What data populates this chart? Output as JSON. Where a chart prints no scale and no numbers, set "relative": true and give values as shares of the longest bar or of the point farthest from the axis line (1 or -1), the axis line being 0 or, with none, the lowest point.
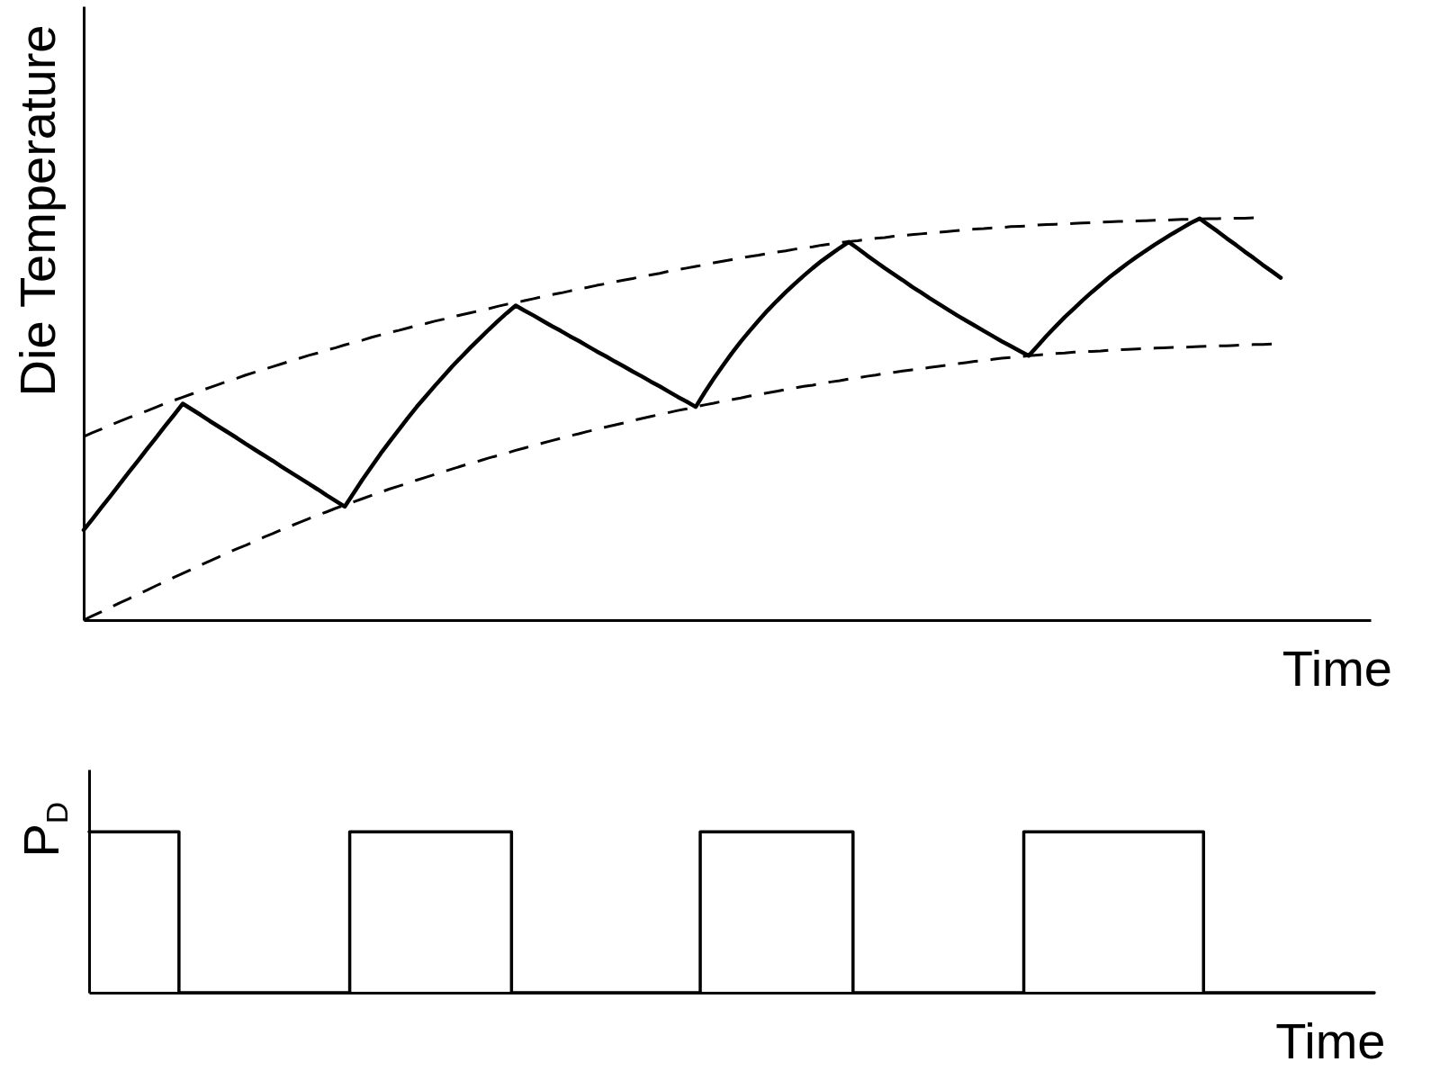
{
  "chart_data": [
    {
      "type": "line",
      "xlabel": "Time",
      "ylabel": "Die Temperature",
      "relative": true,
      "categories": [
        null,
        null,
        null,
        null,
        null,
        null,
        null,
        null,
        null,
        null,
        null,
        null,
        null,
        null,
        null,
        null,
        null,
        null,
        null,
        null,
        null,
        null,
        null,
        null,
        null,
        null,
        null,
        null,
        null,
        null,
        null,
        null,
        null,
        null,
        null,
        null,
        null,
        null,
        null,
        null,
        null,
        null,
        null,
        null,
        null,
        null,
        null,
        null,
        null,
        null,
        null,
        null,
        null,
        null,
        null,
        null,
        null,
        null,
        null,
        null,
        null,
        null,
        null,
        null,
        null,
        null,
        null,
        null,
        null,
        null,
        null,
        null,
        null,
        null,
        null,
        null,
        null,
        null,
        null,
        null,
        null,
        null,
        null,
        null,
        null,
        null,
        null,
        null,
        null,
        null,
        null,
        null,
        null,
        null,
        null,
        null,
        null,
        null,
        null,
        null,
        null,
        null,
        null,
        null,
        null,
        null,
        null,
        null,
        null,
        null,
        null,
        null,
        null,
        null,
        null,
        null,
        null,
        null,
        null,
        null,
        null,
        null,
        null,
        null,
        null,
        null,
        null,
        null,
        null,
        null,
        null,
        null,
        null,
        null,
        null,
        null,
        null,
        null,
        null,
        null,
        null,
        null,
        null,
        null
      ],
      "series": [
        {
          "color": "#000000",
          "line_style": "solid",
          "values": [
            0.224,
            0.252,
            0.281,
            0.309,
            0.338,
            0.367,
            0.395,
            0.424,
            0.452,
            0.481,
            0.509,
            0.538,
            0.524,
            0.51,
            0.495,
            0.481,
            0.467,
            0.453,
            0.438,
            0.424,
            0.41,
            0.396,
            0.381,
            0.367,
            0.353,
            0.339,
            0.325,
            0.31,
            0.296,
            0.282,
            0.316,
            0.35,
            0.382,
            0.414,
            0.444,
            0.473,
            0.502,
            0.53,
            0.556,
            0.582,
            0.607,
            0.632,
            0.655,
            0.678,
            0.7,
            0.722,
            0.743,
            0.763,
            0.782,
            0.769,
            0.757,
            0.744,
            0.731,
            0.719,
            0.706,
            0.694,
            0.681,
            0.668,
            0.656,
            0.643,
            0.631,
            0.618,
            0.606,
            0.593,
            0.581,
            0.568,
            0.555,
            0.543,
            0.53,
            0.566,
            0.6,
            0.632,
            0.663,
            0.692,
            0.719,
            0.745,
            0.77,
            0.793,
            0.815,
            0.836,
            0.856,
            0.875,
            0.893,
            0.909,
            0.925,
            0.94,
            0.924,
            0.907,
            0.891,
            0.875,
            0.86,
            0.845,
            0.829,
            0.815,
            0.8,
            0.786,
            0.772,
            0.758,
            0.745,
            0.732,
            0.719,
            0.706,
            0.693,
            0.681,
            0.669,
            0.657,
            0.682,
            0.707,
            0.73,
            0.753,
            0.774,
            0.795,
            0.815,
            0.834,
            0.853,
            0.87,
            0.887,
            0.903,
            0.918,
            0.933,
            0.947,
            0.961,
            0.974,
            0.987,
            0.998,
            0.982,
            0.966,
            0.949,
            0.933,
            0.916,
            0.9,
            0.883,
            0.867,
            0.851,
            null,
            null,
            null,
            null,
            null,
            null,
            null,
            null,
            null,
            null
          ]
        },
        {
          "color": "#000000",
          "line_style": "dashed",
          "values": [
            0.456,
            0.466,
            0.475,
            0.485,
            0.494,
            0.503,
            0.512,
            0.52,
            0.529,
            0.538,
            0.546,
            0.554,
            0.562,
            0.57,
            0.578,
            0.586,
            0.594,
            0.601,
            0.609,
            0.616,
            0.623,
            0.63,
            0.637,
            0.644,
            0.651,
            0.658,
            0.664,
            0.671,
            0.677,
            0.684,
            0.69,
            0.696,
            0.703,
            0.709,
            0.715,
            0.72,
            0.726,
            0.732,
            0.737,
            0.743,
            0.748,
            0.754,
            0.759,
            0.764,
            0.769,
            0.774,
            0.78,
            0.785,
            0.789,
            0.794,
            0.799,
            0.804,
            0.809,
            0.813,
            0.818,
            0.823,
            0.827,
            0.832,
            0.836,
            0.841,
            0.845,
            0.849,
            0.854,
            0.858,
            0.862,
            0.867,
            0.871,
            0.875,
            0.879,
            0.883,
            0.888,
            0.892,
            0.896,
            0.9,
            0.904,
            0.907,
            0.911,
            0.915,
            0.918,
            0.922,
            0.925,
            0.928,
            0.932,
            0.935,
            0.938,
            0.941,
            0.943,
            0.946,
            0.949,
            0.951,
            0.954,
            0.956,
            0.958,
            0.96,
            0.962,
            0.964,
            0.966,
            0.968,
            0.97,
            0.972,
            0.973,
            0.975,
            0.976,
            0.978,
            0.979,
            0.98,
            0.982,
            0.983,
            0.984,
            0.985,
            0.986,
            0.987,
            0.988,
            0.989,
            0.99,
            0.991,
            0.991,
            0.992,
            0.993,
            0.994,
            0.994,
            0.995,
            0.996,
            0.996,
            0.997,
            0.998,
            0.998,
            0.999,
            0.999,
            0.999,
            1,
            null,
            null,
            null,
            null,
            null,
            null,
            null,
            null,
            null,
            null,
            null,
            null,
            null
          ]
        },
        {
          "color": "#000000",
          "line_style": "dashed",
          "values": [
            0,
            0.011,
            0.021,
            0.032,
            0.043,
            0.053,
            0.064,
            0.074,
            0.085,
            0.095,
            0.106,
            0.116,
            0.126,
            0.137,
            0.147,
            0.157,
            0.167,
            0.177,
            0.186,
            0.196,
            0.206,
            0.215,
            0.225,
            0.234,
            0.243,
            0.252,
            0.261,
            0.269,
            0.278,
            0.286,
            0.294,
            0.302,
            0.31,
            0.318,
            0.326,
            0.333,
            0.34,
            0.348,
            0.355,
            0.362,
            0.369,
            0.376,
            0.383,
            0.39,
            0.396,
            0.403,
            0.409,
            0.415,
            0.422,
            0.428,
            0.434,
            0.44,
            0.446,
            0.452,
            0.458,
            0.463,
            0.469,
            0.474,
            0.48,
            0.485,
            0.49,
            0.496,
            0.501,
            0.506,
            0.511,
            0.516,
            0.521,
            0.525,
            0.53,
            0.535,
            0.539,
            0.544,
            0.548,
            0.552,
            0.557,
            0.561,
            0.565,
            0.569,
            0.573,
            0.577,
            0.581,
            0.584,
            0.588,
            0.592,
            0.595,
            0.599,
            0.602,
            0.606,
            0.609,
            0.613,
            0.616,
            0.619,
            0.622,
            0.625,
            0.628,
            0.631,
            0.634,
            0.637,
            0.64,
            0.643,
            0.645,
            0.648,
            0.651,
            0.653,
            0.655,
            0.657,
            0.659,
            0.661,
            0.663,
            0.664,
            0.666,
            0.667,
            0.668,
            0.669,
            0.671,
            0.672,
            0.673,
            0.674,
            0.675,
            0.676,
            0.677,
            0.678,
            0.678,
            0.679,
            0.68,
            0.681,
            0.682,
            0.682,
            0.683,
            0.684,
            0.685,
            0.685,
            0.686,
            null,
            null,
            null,
            null,
            null,
            null,
            null,
            null,
            null,
            null,
            null
          ]
        }
      ]
    },
    {
      "type": "step",
      "xlabel": "Time",
      "ylabel": "P$_{D}$",
      "relative": true,
      "color": "#000000",
      "categories": [
        null,
        null,
        null,
        null,
        null,
        null,
        null,
        null,
        null,
        null,
        null,
        null,
        null,
        null,
        null,
        null,
        null,
        null,
        null,
        null,
        null,
        null,
        null,
        null,
        null,
        null,
        null,
        null,
        null,
        null,
        null,
        null,
        null,
        null,
        null,
        null,
        null,
        null,
        null,
        null,
        null,
        null,
        null,
        null,
        null,
        null,
        null,
        null,
        null,
        null,
        null,
        null,
        null,
        null,
        null,
        null,
        null,
        null,
        null,
        null,
        null,
        null,
        null,
        null,
        null,
        null,
        null,
        null,
        null,
        null,
        null,
        null,
        null,
        null,
        null,
        null,
        null,
        null,
        null,
        null,
        null,
        null,
        null,
        null,
        null,
        null,
        null,
        null,
        null,
        null,
        null,
        null,
        null,
        null,
        null,
        null,
        null,
        null,
        null,
        null,
        null,
        null,
        null,
        null,
        null,
        null,
        null,
        null,
        null,
        null,
        null,
        null,
        null,
        null,
        null,
        null,
        null,
        null,
        null,
        null,
        null,
        null,
        null,
        null,
        null,
        null,
        null,
        null,
        null,
        null,
        null,
        null,
        null,
        null,
        null,
        null,
        null,
        null,
        null,
        null,
        null,
        null,
        null,
        null
      ],
      "values": [
        1,
        1,
        1,
        1,
        1,
        1,
        1,
        1,
        1,
        1,
        0,
        0,
        0,
        0,
        0,
        0,
        0,
        0,
        0,
        0,
        0,
        0,
        0,
        0,
        0,
        0,
        0,
        0,
        0,
        1,
        1,
        1,
        1,
        1,
        1,
        1,
        1,
        1,
        1,
        1,
        1,
        1,
        1,
        1,
        1,
        1,
        1,
        0,
        0,
        0,
        0,
        0,
        0,
        0,
        0,
        0,
        0,
        0,
        0,
        0,
        0,
        0,
        0,
        0,
        0,
        0,
        0,
        0,
        1,
        1,
        1,
        1,
        1,
        1,
        1,
        1,
        1,
        1,
        1,
        1,
        1,
        1,
        1,
        1,
        1,
        0,
        0,
        0,
        0,
        0,
        0,
        0,
        0,
        0,
        0,
        0,
        0,
        0,
        0,
        0,
        0,
        0,
        0,
        0,
        1,
        1,
        1,
        1,
        1,
        1,
        1,
        1,
        1,
        1,
        1,
        1,
        1,
        1,
        1,
        1,
        1,
        1,
        1,
        1,
        0,
        0,
        0,
        0,
        0,
        0,
        0,
        0,
        0,
        0,
        0,
        0,
        0,
        0,
        0,
        0,
        0,
        0,
        0,
        0
      ]
    }
  ]
}
